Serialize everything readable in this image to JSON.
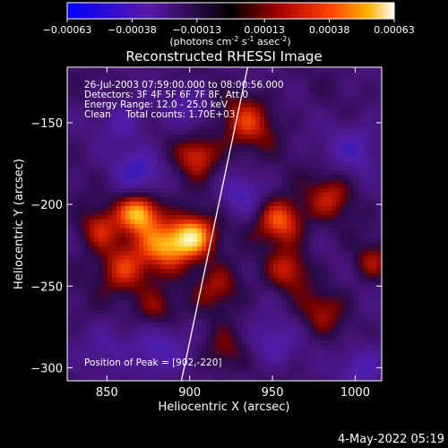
{
  "chart_data": {
    "type": "heatmap",
    "title": "Reconstructed RHESSI Image",
    "xlabel": "Heliocentric X (arcsec)",
    "ylabel": "Heliocentric Y (arcsec)",
    "xlim": [
      826,
      1016
    ],
    "ylim": [
      -308,
      -116
    ],
    "xticks": [
      850,
      900,
      950,
      1000
    ],
    "yticks": [
      -150,
      -200,
      -250,
      -300
    ],
    "colorbar": {
      "range": [
        -0.00063,
        0.00063
      ],
      "ticks": [
        "-0.00063",
        "-0.00038",
        "-0.00013",
        "0.00013",
        "0.00038",
        "0.00063"
      ],
      "tick_values": [
        -0.00063,
        -0.00038,
        -0.00013,
        0.00013,
        0.00038,
        0.00063
      ],
      "unit_label_parts": [
        "(photons cm",
        "-2",
        " s",
        "-1",
        " asec",
        "-2",
        ")"
      ]
    },
    "annotations": [
      "26-Jul-2003 07:59:00.000 to 08:00:56.000",
      "Detectors: 3F 4F 5F 6F 7F 8F, Att 0",
      "Energy Range: 12.0 - 25.0 keV",
      "Clean     Total counts: 1.70E+03"
    ],
    "peak_label": "Position of Peak = [902,-220]",
    "peak": [
      902,
      -220
    ],
    "limb_line": [
      [
        895,
        -308
      ],
      [
        935,
        -116
      ]
    ],
    "blobs": [
      {
        "x": 870,
        "y": -205,
        "value": 0.00063,
        "r": 9
      },
      {
        "x": 902,
        "y": -220,
        "value": 0.00063,
        "r": 10
      },
      {
        "x": 885,
        "y": -225,
        "value": 0.00045,
        "r": 10
      },
      {
        "x": 860,
        "y": -240,
        "value": 0.0004,
        "r": 12
      },
      {
        "x": 845,
        "y": -215,
        "value": 0.00032,
        "r": 9
      },
      {
        "x": 905,
        "y": -170,
        "value": 0.0004,
        "r": 9
      },
      {
        "x": 918,
        "y": -250,
        "value": 0.0003,
        "r": 10
      },
      {
        "x": 880,
        "y": -265,
        "value": 0.00028,
        "r": 9
      },
      {
        "x": 955,
        "y": -210,
        "value": 0.0005,
        "r": 10
      },
      {
        "x": 935,
        "y": -150,
        "value": 0.00035,
        "r": 12
      },
      {
        "x": 960,
        "y": -240,
        "value": 0.00032,
        "r": 9
      },
      {
        "x": 985,
        "y": -195,
        "value": 0.0003,
        "r": 10
      },
      {
        "x": 980,
        "y": -265,
        "value": 0.00025,
        "r": 10
      },
      {
        "x": 920,
        "y": -290,
        "value": 0.00022,
        "r": 9
      },
      {
        "x": 1010,
        "y": -235,
        "value": 0.00025,
        "r": 8
      },
      {
        "x": 870,
        "y": -180,
        "value": -0.00035,
        "r": 10
      },
      {
        "x": 930,
        "y": -195,
        "value": -0.0003,
        "r": 9
      },
      {
        "x": 860,
        "y": -150,
        "value": -0.00025,
        "r": 10
      },
      {
        "x": 1000,
        "y": -165,
        "value": -0.00028,
        "r": 11
      },
      {
        "x": 880,
        "y": -290,
        "value": -0.0003,
        "r": 12
      },
      {
        "x": 850,
        "y": -285,
        "value": -0.0002,
        "r": 10
      },
      {
        "x": 1005,
        "y": -300,
        "value": -0.0003,
        "r": 10
      },
      {
        "x": 950,
        "y": -285,
        "value": -0.00025,
        "r": 10
      },
      {
        "x": 900,
        "y": -140,
        "value": -0.0002,
        "r": 9
      }
    ]
  },
  "footer": {
    "timestamp": "4-May-2022 05:19"
  }
}
